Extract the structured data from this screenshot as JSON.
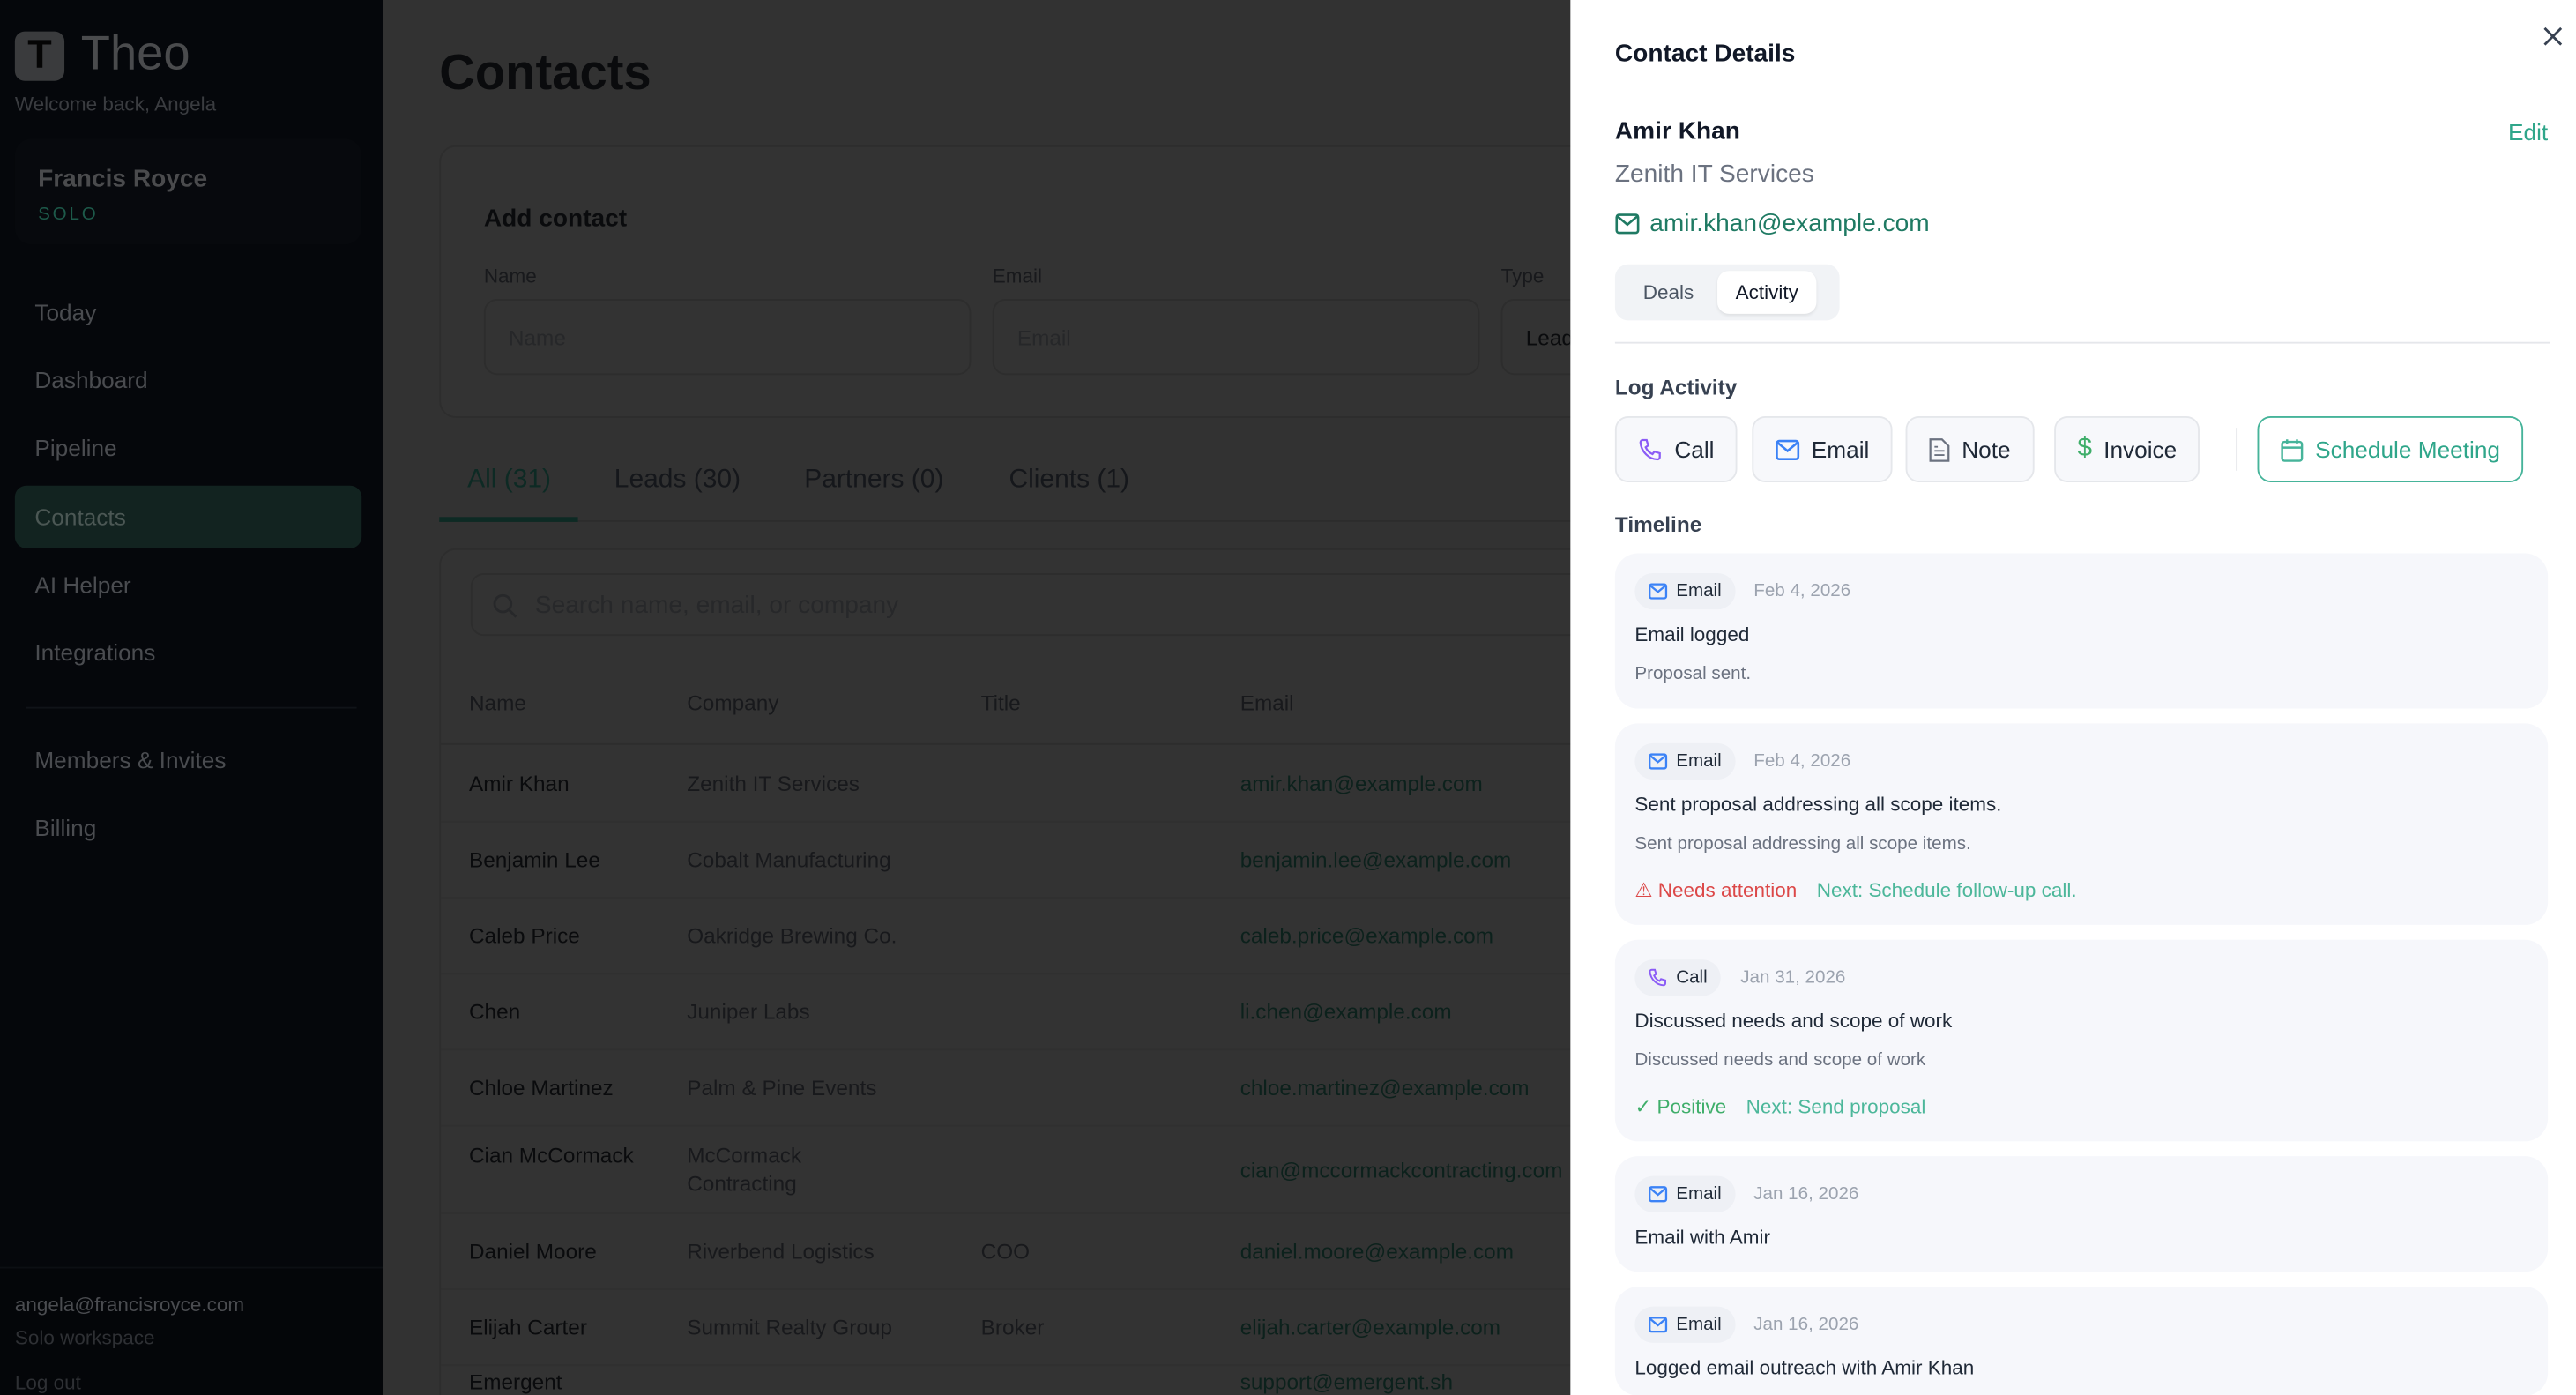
{
  "app": {
    "name": "Theo",
    "logo_letter": "T",
    "welcome": "Welcome back, Angela"
  },
  "workspace": {
    "name": "Francis Royce",
    "plan": "SOLO"
  },
  "sidebar": {
    "items": [
      {
        "label": "Today"
      },
      {
        "label": "Dashboard"
      },
      {
        "label": "Pipeline"
      },
      {
        "label": "Contacts",
        "active": true
      },
      {
        "label": "AI Helper"
      },
      {
        "label": "Integrations"
      },
      {
        "label": "Members & Invites"
      },
      {
        "label": "Billing"
      }
    ],
    "footer": {
      "email": "angela@francisroyce.com",
      "workspace": "Solo workspace",
      "logout": "Log out"
    }
  },
  "main": {
    "title": "Contacts",
    "add_contact": {
      "title": "Add contact",
      "name_label": "Name",
      "name_placeholder": "Name",
      "email_label": "Email",
      "email_placeholder": "Email",
      "type_label": "Type",
      "type_value": "Lead"
    },
    "tabs": [
      {
        "label": "All (31)",
        "active": true
      },
      {
        "label": "Leads (30)"
      },
      {
        "label": "Partners (0)"
      },
      {
        "label": "Clients (1)"
      }
    ],
    "search_placeholder": "Search name, email, or company",
    "columns": [
      "Name",
      "Company",
      "Title",
      "Email"
    ],
    "rows": [
      [
        "Amir Khan",
        "Zenith IT Services",
        "",
        "amir.khan@example.com"
      ],
      [
        "Benjamin Lee",
        "Cobalt Manufacturing",
        "",
        "benjamin.lee@example.com"
      ],
      [
        "Caleb Price",
        "Oakridge Brewing Co.",
        "",
        "caleb.price@example.com"
      ],
      [
        "Chen",
        "Juniper Labs",
        "",
        "li.chen@example.com"
      ],
      [
        "Chloe Martinez",
        "Palm & Pine Events",
        "",
        "chloe.martinez@example.com"
      ],
      [
        "Cian McCormack",
        "McCormack Contracting",
        "",
        "cian@mccormackcontracting.com"
      ],
      [
        "Daniel Moore",
        "Riverbend Logistics",
        "COO",
        "daniel.moore@example.com"
      ],
      [
        "Elijah Carter",
        "Summit Realty Group",
        "Broker",
        "elijah.carter@example.com"
      ],
      [
        "Emergent",
        "",
        "",
        "support@emergent.sh"
      ]
    ]
  },
  "drawer": {
    "title": "Contact Details",
    "name": "Amir Khan",
    "edit_label": "Edit",
    "company": "Zenith IT Services",
    "email": "amir.khan@example.com",
    "tabs": [
      {
        "label": "Deals"
      },
      {
        "label": "Activity",
        "active": true
      }
    ],
    "log_activity_title": "Log Activity",
    "log_buttons": [
      {
        "label": "Call",
        "icon": "phone-icon"
      },
      {
        "label": "Email",
        "icon": "mail-icon"
      },
      {
        "label": "Note",
        "icon": "note-icon"
      },
      {
        "label": "Invoice",
        "icon": "dollar-icon"
      },
      {
        "label": "Schedule Meeting",
        "icon": "calendar-icon"
      }
    ],
    "timeline_title": "Timeline",
    "timeline": [
      {
        "type": "Email",
        "date": "Feb 4, 2026",
        "title": "Email logged",
        "desc": "Proposal sent."
      },
      {
        "type": "Email",
        "date": "Feb 4, 2026",
        "title": "Sent proposal addressing all scope items.",
        "desc": "Sent proposal addressing all scope items.",
        "sentiment": "Needs attention",
        "next": "Next: Schedule follow-up call."
      },
      {
        "type": "Call",
        "date": "Jan 31, 2026",
        "title": "Discussed needs and scope of work",
        "desc": "Discussed needs and scope of work",
        "sentiment": "Positive",
        "next": "Next: Send proposal"
      },
      {
        "type": "Email",
        "date": "Jan 16, 2026",
        "title": "Email with Amir"
      },
      {
        "type": "Email",
        "date": "Jan 16, 2026",
        "title": "Logged email outreach with Amir Khan"
      }
    ]
  },
  "colors": {
    "brand": "#0f5c4a",
    "accent": "#2fa68a",
    "warning": "#dc4848",
    "positive": "#3fae6a",
    "call_icon": "#8b5cf6",
    "email_icon": "#3b82f6"
  }
}
